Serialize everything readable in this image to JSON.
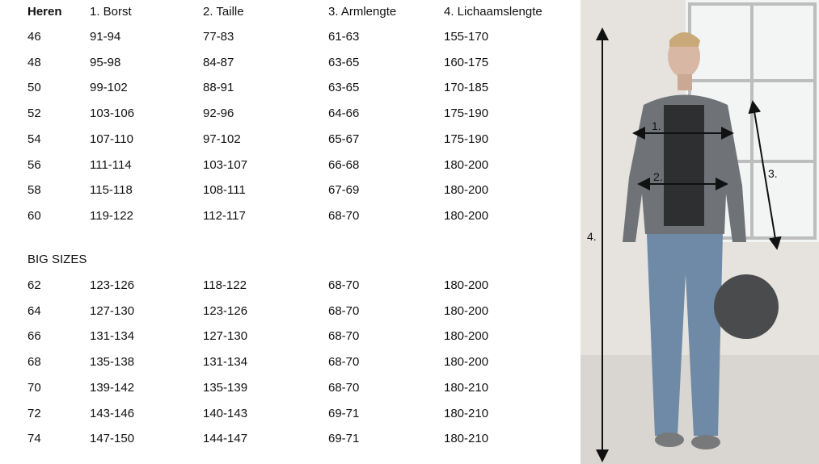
{
  "table": {
    "headers": [
      "Heren",
      "1.  Borst",
      "2.  Taille",
      "3. Armlengte",
      "4. Lichaamslengte"
    ],
    "rows": [
      [
        "46",
        "91-94",
        "77-83",
        "61-63",
        "155-170"
      ],
      [
        "48",
        "95-98",
        "84-87",
        "63-65",
        "160-175"
      ],
      [
        "50",
        "99-102",
        "88-91",
        "63-65",
        "170-185"
      ],
      [
        "52",
        "103-106",
        "92-96",
        "64-66",
        "175-190"
      ],
      [
        "54",
        "107-110",
        "97-102",
        "65-67",
        "175-190"
      ],
      [
        "56",
        "111-114",
        "103-107",
        "66-68",
        "180-200"
      ],
      [
        "58",
        "115-118",
        "108-111",
        "67-69",
        "180-200"
      ],
      [
        "60",
        "119-122",
        "112-117",
        "68-70",
        "180-200"
      ]
    ],
    "big_sizes_label": "BIG SIZES",
    "big_rows": [
      [
        "62",
        "123-126",
        "118-122",
        "68-70",
        "180-200"
      ],
      [
        "64",
        "127-130",
        "123-126",
        "68-70",
        "180-200"
      ],
      [
        "66",
        "131-134",
        "127-130",
        "68-70",
        "180-200"
      ],
      [
        "68",
        "135-138",
        "131-134",
        "68-70",
        "180-200"
      ],
      [
        "70",
        "139-142",
        "135-139",
        "68-70",
        "180-210"
      ],
      [
        "72",
        "143-146",
        "140-143",
        "69-71",
        "180-210"
      ],
      [
        "74",
        "147-150",
        "144-147",
        "69-71",
        "180-210"
      ]
    ]
  },
  "photo": {
    "measure_labels": [
      "1.",
      "2.",
      "3.",
      "4."
    ]
  }
}
